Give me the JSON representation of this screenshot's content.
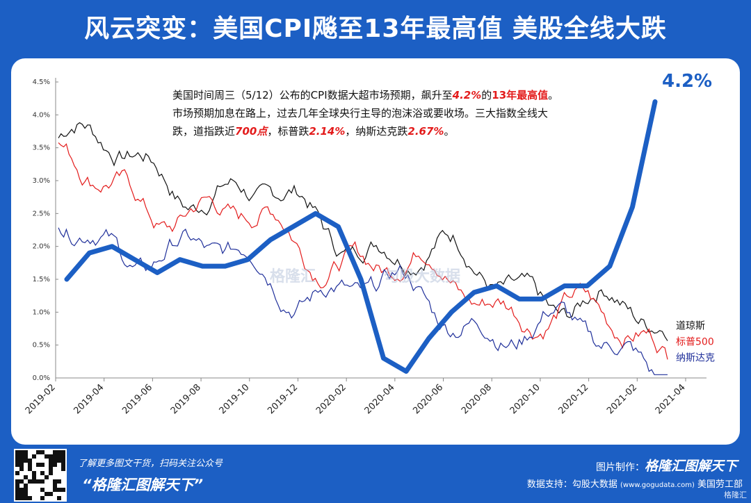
{
  "title": "风云突变：美国CPI飚至13年最高值 美股全线大跌",
  "annotation": {
    "l1a": "美国时间周三（5/12）公布的CPI数据大超市场预期，飙升至",
    "l1b": "4.2%",
    "l1c": "的",
    "l1d": "13年最高值",
    "l1e": "。",
    "l2": "市场预期加息在路上，过去几年全球央行主导的泡沫浴或要收场。三大指数全线大",
    "l3a": "跌，道指跌近",
    "l3b": "700点",
    "l3c": "，标普跌",
    "l3d": "2.14%",
    "l3e": "，纳斯达克跌",
    "l3f": "2.67%",
    "l3g": "。"
  },
  "big_label": "4.2%",
  "watermark": {
    "a": "格隆汇",
    "b": "勾股大数据"
  },
  "footer": {
    "left1": "了解更多图文干货，扫码关注公众号",
    "left2": "“格隆汇图解天下”",
    "right1_label": "图片制作：",
    "right1_brand": "格隆汇图解天下",
    "right2_label": "数据支持：勾股大数据",
    "right2_url": "(www.gogudata.com)",
    "right2_tail": "美国劳工部",
    "corner": "格隆汇"
  },
  "chart_data": {
    "type": "line",
    "x_ticks": [
      "2019-02",
      "2019-04",
      "2019-06",
      "2019-08",
      "2019-10",
      "2019-12",
      "2020-02",
      "2020-04",
      "2020-06",
      "2020-08",
      "2020-10",
      "2020-12",
      "2021-02",
      "2021-04"
    ],
    "y_ticks": [
      "0.0%",
      "0.5%",
      "1.0%",
      "1.5%",
      "2.0%",
      "2.5%",
      "3.0%",
      "3.5%",
      "4.0%",
      "4.5%"
    ],
    "ylim": [
      0,
      4.5
    ],
    "cpi": {
      "x": [
        "2019-02",
        "2019-03",
        "2019-04",
        "2019-05",
        "2019-06",
        "2019-07",
        "2019-08",
        "2019-09",
        "2019-10",
        "2019-11",
        "2019-12",
        "2020-01",
        "2020-02",
        "2020-03",
        "2020-04",
        "2020-05",
        "2020-06",
        "2020-07",
        "2020-08",
        "2020-09",
        "2020-10",
        "2020-11",
        "2020-12",
        "2021-01",
        "2021-02",
        "2021-03",
        "2021-04"
      ],
      "values": [
        1.5,
        1.9,
        2.0,
        1.8,
        1.6,
        1.8,
        1.7,
        1.7,
        1.8,
        2.1,
        2.3,
        2.5,
        2.3,
        1.5,
        0.3,
        0.1,
        0.6,
        1.0,
        1.3,
        1.4,
        1.2,
        1.2,
        1.4,
        1.4,
        1.7,
        2.6,
        4.2
      ]
    },
    "series": [
      {
        "name": "道琼斯",
        "color": "#111111",
        "start": 3.65,
        "end": 0.7
      },
      {
        "name": "标普500",
        "color": "#e31b1b",
        "start": 3.15,
        "end": 0.5
      },
      {
        "name": "纳斯达克",
        "color": "#1f2f9a",
        "start": 2.3,
        "end": 0.3
      }
    ],
    "cpi_color": "#1c5fc4"
  }
}
